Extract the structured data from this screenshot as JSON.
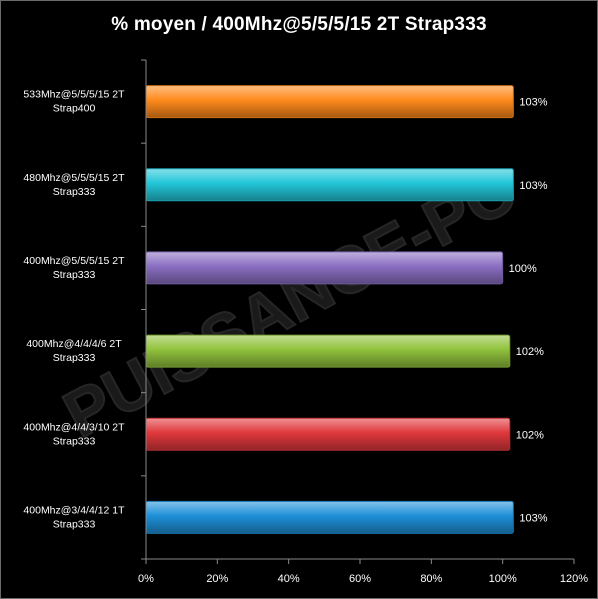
{
  "chart_data": {
    "type": "bar",
    "orientation": "horizontal",
    "title": "% moyen / 400Mhz@5/5/5/15  2T  Strap333",
    "categories": [
      {
        "line1": "533Mhz@5/5/5/15  2T",
        "line2": "Strap400"
      },
      {
        "line1": "480Mhz@5/5/5/15  2T",
        "line2": "Strap333"
      },
      {
        "line1": "400Mhz@5/5/5/15  2T",
        "line2": "Strap333"
      },
      {
        "line1": "400Mhz@4/4/4/6  2T",
        "line2": "Strap333"
      },
      {
        "line1": "400Mhz@4/4/3/10  2T",
        "line2": "Strap333"
      },
      {
        "line1": "400Mhz@3/4/4/12  1T",
        "line2": "Strap333"
      }
    ],
    "values": [
      103,
      103,
      100,
      102,
      102,
      103
    ],
    "data_labels": [
      "103%",
      "103%",
      "100%",
      "102%",
      "102%",
      "103%"
    ],
    "bar_colors": [
      "#ff8a1c",
      "#22c6d8",
      "#8a6ec2",
      "#90c23c",
      "#e0383c",
      "#1e90d8"
    ],
    "xlim": [
      0,
      120
    ],
    "x_ticks": [
      "0%",
      "20%",
      "40%",
      "60%",
      "80%",
      "100%",
      "120%"
    ],
    "xlabel": "",
    "ylabel": "",
    "grid": false,
    "legend": "none",
    "background": "#000000",
    "watermark": "PUISSANCE-PC"
  }
}
